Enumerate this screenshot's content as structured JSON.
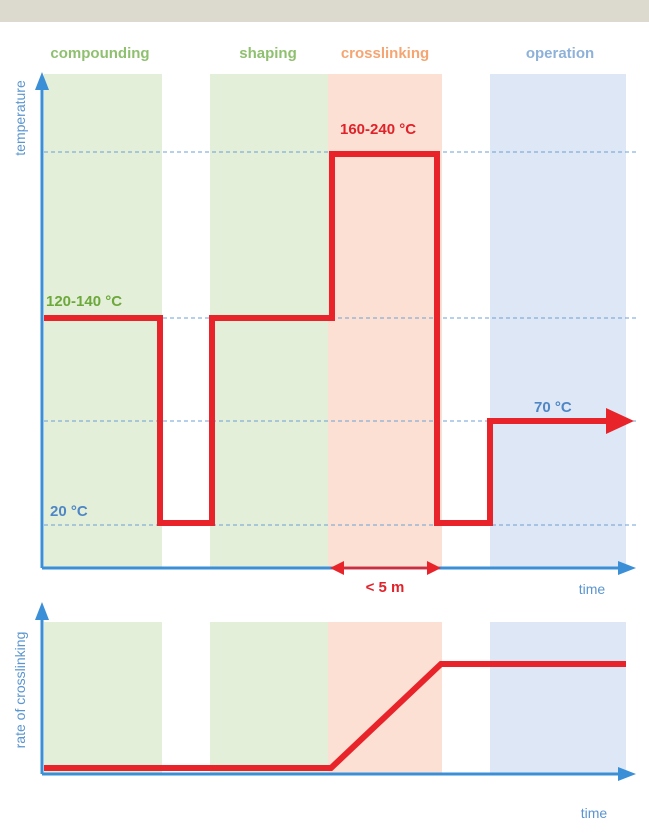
{
  "phases": [
    {
      "label": "compounding",
      "color": "#e3efd9",
      "title_color": "#8fc06f"
    },
    {
      "label": "shaping",
      "color": "#e3efd9",
      "title_color": "#8fc06f"
    },
    {
      "label": "crosslinking",
      "color": "#fbe0d3",
      "title_color": "#f5a572"
    },
    {
      "label": "operation",
      "color": "#dde7f5",
      "title_color": "#8db1d8"
    }
  ],
  "top_panel": {
    "y_label": "temperature",
    "x_label": "time",
    "labels": {
      "compounding_temp": "120-140 °C",
      "cure_temp": "160-240 °C",
      "room_temp": "20 °C",
      "operation_temp": "70 °C"
    },
    "duration_label": "< 5 m"
  },
  "bottom_panel": {
    "y_label": "rate of crosslinking",
    "x_label": "time"
  },
  "colors": {
    "axis": "#3b8fd6",
    "axis_text": "#5b95cf",
    "curve": "#e8232a",
    "guide": "#6e9fd4",
    "green_text": "#6ca83a",
    "blue_text": "#4f86c6",
    "red_text": "#e0222a",
    "top_band": "#dcd9cf"
  }
}
